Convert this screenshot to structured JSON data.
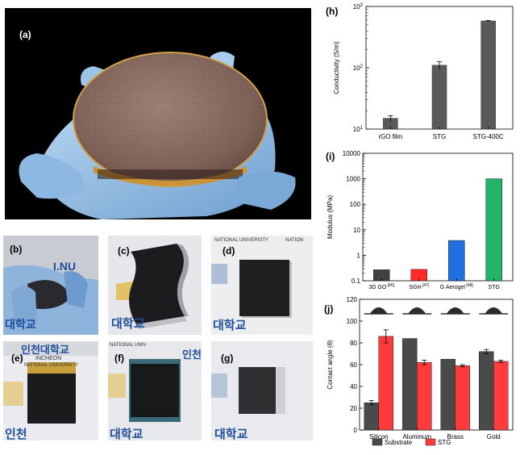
{
  "panels": {
    "a": {
      "label": "(a)"
    },
    "b": {
      "label": "(b)"
    },
    "c": {
      "label": "(c)"
    },
    "d": {
      "label": "(d)"
    },
    "e": {
      "label": "(e)"
    },
    "f": {
      "label": "(f)"
    },
    "g": {
      "label": "(g)"
    }
  },
  "photo_text": {
    "lnu": "I.NU",
    "korean_1": "인천대학교",
    "korean_2": "대학교",
    "korean_3": "인천",
    "incheon": "INCHEON",
    "national_university": "NATIONAL UNIVERSITY",
    "nation": "NATION",
    "national_uni": "NATIONAL UNIV"
  },
  "chart_data": [
    {
      "id": "h",
      "panel_label": "(h)",
      "type": "bar",
      "yscale": "log",
      "ylabel": "Conductivity (S/m)",
      "ylim": [
        10,
        1000
      ],
      "yticks": [
        {
          "value": 10,
          "base": "10",
          "exp": "1"
        },
        {
          "value": 100,
          "base": "10",
          "exp": "2"
        },
        {
          "value": 1000,
          "base": "10",
          "exp": "3"
        }
      ],
      "categories": [
        "rGO film",
        "STG",
        "STG-400C"
      ],
      "values": [
        15,
        110,
        580
      ],
      "errors": [
        1.5,
        15,
        10
      ],
      "color": "#595959"
    },
    {
      "id": "i",
      "panel_label": "(i)",
      "type": "bar",
      "yscale": "log",
      "ylabel": "Modulus (MPa)",
      "ylim": [
        0.1,
        10000
      ],
      "yticks": [
        "0.1",
        "1",
        "10",
        "100",
        "1000",
        "10000"
      ],
      "categories": [
        {
          "name": "3D GO",
          "ref": "[46]"
        },
        {
          "name": "SGH",
          "ref": "[47]"
        },
        {
          "name": "G Aerogel",
          "ref": "[48]"
        },
        {
          "name": "STG",
          "ref": ""
        }
      ],
      "values": [
        0.27,
        0.28,
        3.8,
        1000
      ],
      "colors": [
        "#404040",
        "#ff2a2a",
        "#1f6fe0",
        "#22b567"
      ]
    },
    {
      "id": "j",
      "panel_label": "(j)",
      "type": "bar",
      "ylabel": "Contact angle (θ)",
      "ylim": [
        0,
        120
      ],
      "yticks": [
        "0",
        "20",
        "40",
        "60",
        "80",
        "100",
        "120"
      ],
      "categories": [
        "Silicon",
        "Aluminum",
        "Brass",
        "Gold"
      ],
      "series": [
        {
          "name": "Substrate",
          "values": [
            25,
            84,
            65,
            72
          ],
          "errors": [
            2,
            0,
            0,
            2
          ],
          "color": "#4a4a4a"
        },
        {
          "name": "STG",
          "values": [
            86,
            62,
            59,
            63
          ],
          "errors": [
            6,
            2,
            1,
            1
          ],
          "color": "#ff3b3b"
        }
      ]
    }
  ]
}
